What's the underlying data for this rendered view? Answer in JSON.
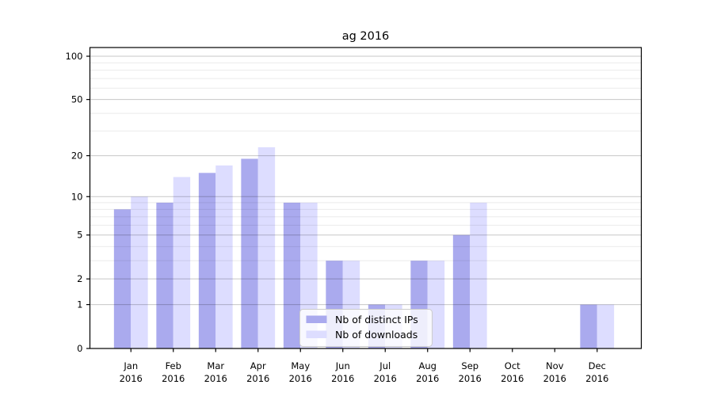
{
  "chart_data": {
    "type": "bar",
    "title": "ag 2016",
    "categories": [
      "Jan\n2016",
      "Feb\n2016",
      "Mar\n2016",
      "Apr\n2016",
      "May\n2016",
      "Jun\n2016",
      "Jul\n2016",
      "Aug\n2016",
      "Sep\n2016",
      "Oct\n2016",
      "Nov\n2016",
      "Dec\n2016"
    ],
    "series": [
      {
        "name": "Nb of distinct IPs",
        "color": "#aaaaee",
        "values": [
          8,
          9,
          15,
          19,
          9,
          3,
          1,
          3,
          5,
          0,
          0,
          1
        ]
      },
      {
        "name": "Nb of downloads",
        "color": "#ddddff",
        "values": [
          10,
          14,
          17,
          23,
          9,
          3,
          1,
          3,
          9,
          0,
          0,
          1
        ]
      }
    ],
    "yscale": "log1p",
    "ylim": [
      0,
      115
    ],
    "yticks": [
      100,
      50,
      20,
      10,
      5,
      2,
      1,
      0
    ],
    "minor_yticks": [
      3,
      4,
      6,
      7,
      8,
      9,
      30,
      40,
      60,
      70,
      80,
      90
    ],
    "grid": "horizontal",
    "legend_position": "lower-center",
    "axis_color": "#000000",
    "major_grid_color": "rgba(0,0,0,0.22)",
    "minor_grid_color": "rgba(0,0,0,0.08)",
    "legend_border_color": "#cccccc",
    "legend_bg_color": "rgba(255,255,255,0.8)"
  }
}
